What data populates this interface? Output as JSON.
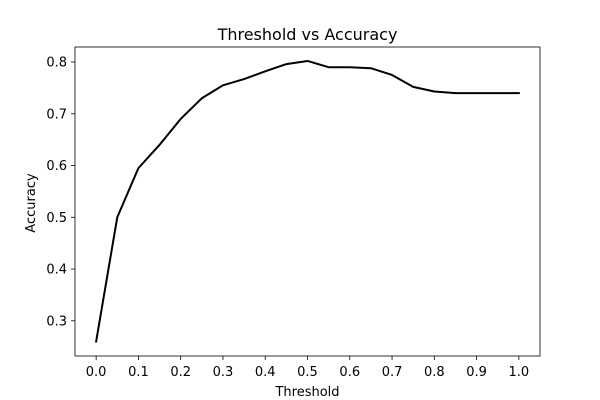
{
  "chart_data": {
    "type": "line",
    "title": "Threshold vs Accuracy",
    "xlabel": "Threshold",
    "ylabel": "Accuracy",
    "xlim": [
      -0.05,
      1.05
    ],
    "ylim": [
      0.232,
      0.829
    ],
    "xticks": [
      0.0,
      0.1,
      0.2,
      0.3,
      0.4,
      0.5,
      0.6,
      0.7,
      0.8,
      0.9,
      1.0
    ],
    "xtick_labels": [
      "0.0",
      "0.1",
      "0.2",
      "0.3",
      "0.4",
      "0.5",
      "0.6",
      "0.7",
      "0.8",
      "0.9",
      "1.0"
    ],
    "yticks": [
      0.3,
      0.4,
      0.5,
      0.6,
      0.7,
      0.8
    ],
    "ytick_labels": [
      "0.3",
      "0.4",
      "0.5",
      "0.6",
      "0.7",
      "0.8"
    ],
    "grid": false,
    "legend": "none",
    "series": [
      {
        "color": "#000000",
        "x": [
          0.0,
          0.05,
          0.1,
          0.15,
          0.2,
          0.25,
          0.3,
          0.35,
          0.4,
          0.45,
          0.5,
          0.55,
          0.6,
          0.65,
          0.7,
          0.75,
          0.8,
          0.85,
          0.9,
          0.95,
          1.0
        ],
        "y": [
          0.26,
          0.5,
          0.595,
          0.64,
          0.69,
          0.73,
          0.755,
          0.767,
          0.782,
          0.796,
          0.802,
          0.79,
          0.79,
          0.788,
          0.775,
          0.752,
          0.743,
          0.74,
          0.74,
          0.74,
          0.74
        ]
      }
    ]
  }
}
